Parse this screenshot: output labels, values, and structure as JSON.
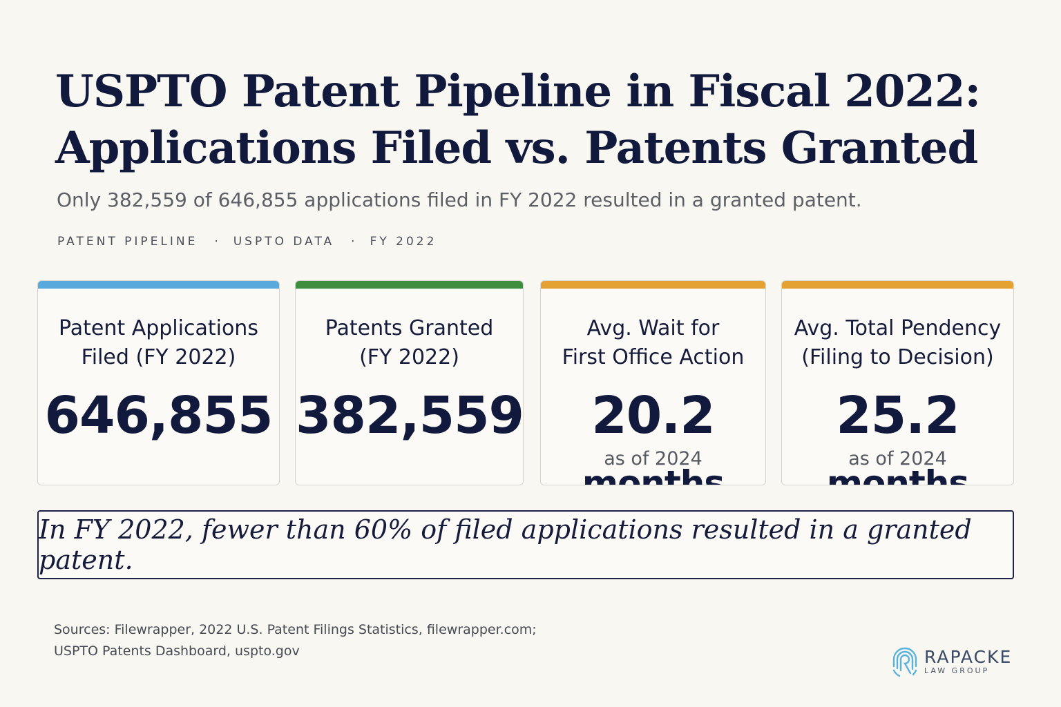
{
  "header": {
    "title_line1": "USPTO Patent Pipeline in Fiscal 2022:",
    "title_line2": "Applications Filed vs. Patents Granted",
    "subtitle": "Only 382,559 of 646,855 applications filed in FY 2022 resulted in a granted patent.",
    "tags": [
      "PATENT PIPELINE",
      "USPTO DATA",
      "FY 2022"
    ],
    "tag_separator": "·"
  },
  "cards": [
    {
      "label_line1": "Patent Applications",
      "label_line2": "Filed (FY 2022)",
      "value": "646,855",
      "unit": "",
      "note": "",
      "accent": "#5aa9dc"
    },
    {
      "label_line1": "Patents Granted",
      "label_line2": "(FY 2022)",
      "value": "382,559",
      "unit": "",
      "note": "",
      "accent": "#3f8e3f"
    },
    {
      "label_line1": "Avg. Wait for",
      "label_line2": "First Office Action",
      "value": "20.2",
      "unit": "months",
      "note": "as of 2024",
      "accent": "#e3a232"
    },
    {
      "label_line1": "Avg. Total Pendency",
      "label_line2": "(Filing to Decision)",
      "value": "25.2",
      "unit": "months",
      "note": "as of 2024",
      "accent": "#e3a232"
    }
  ],
  "callout": "In FY 2022, fewer than 60% of filed applications resulted in a granted patent.",
  "sources": {
    "line1": "Sources: Filewrapper, 2022 U.S. Patent Filings Statistics, filewrapper.com;",
    "line2": "USPTO Patents Dashboard, uspto.gov"
  },
  "logo": {
    "name": "RAPACKE",
    "sub": "LAW GROUP",
    "icon": "fingerprint-r-icon",
    "color": "#5ab3dc"
  }
}
